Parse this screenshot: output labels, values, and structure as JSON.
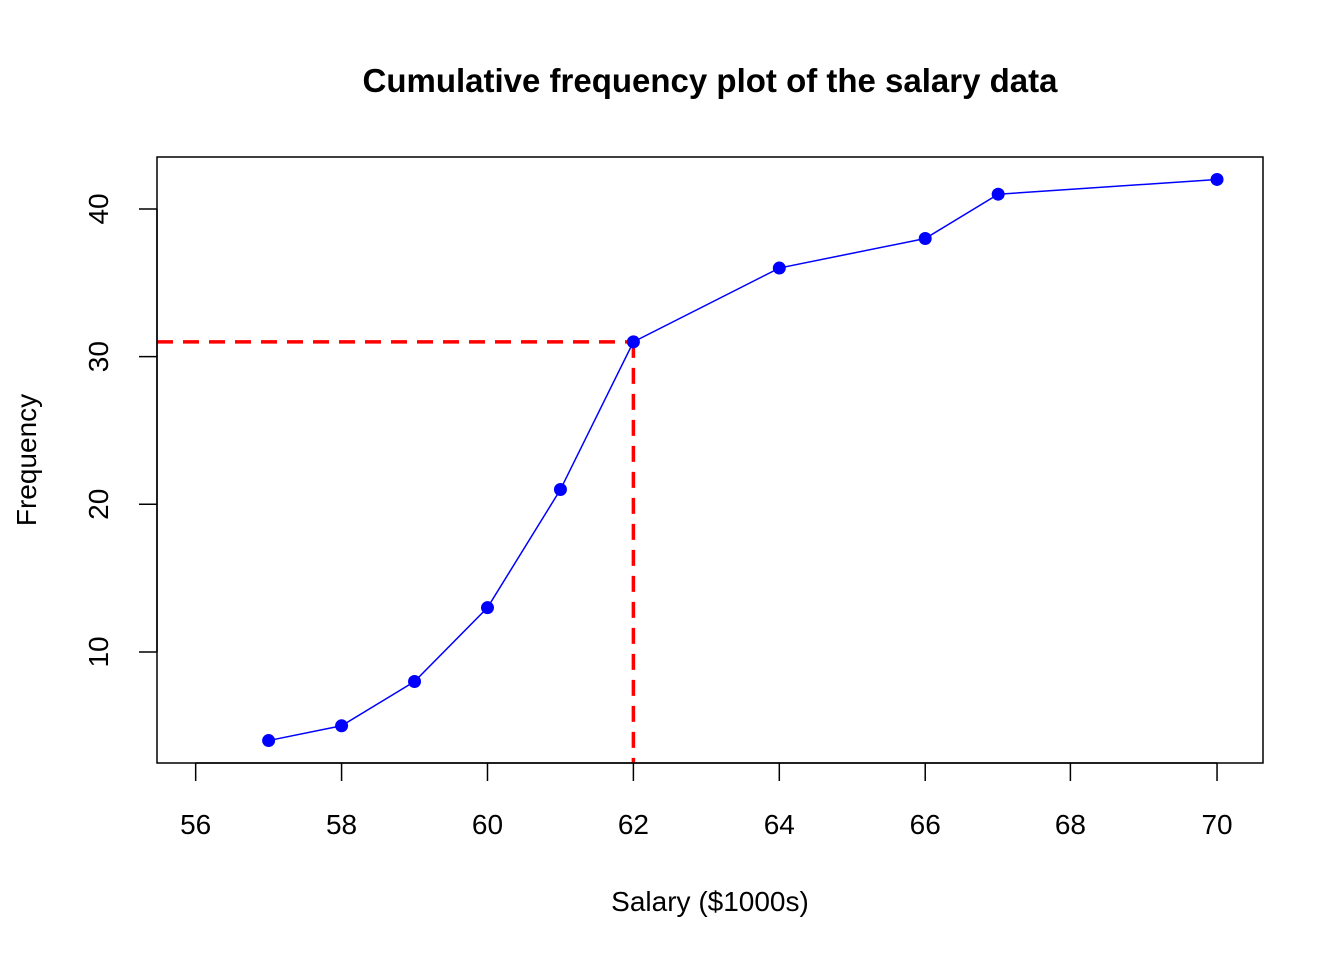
{
  "chart_data": {
    "type": "line",
    "title": "Cumulative frequency plot of the salary data",
    "xlabel": "Salary ($1000s)",
    "ylabel": "Frequency",
    "xlim": [
      55.47,
      70.63
    ],
    "ylim": [
      2.48,
      43.52
    ],
    "x_ticks": [
      56,
      58,
      60,
      62,
      64,
      66,
      67.99,
      70
    ],
    "x_tick_labels": [
      "56",
      "58",
      "60",
      "62",
      "64",
      "66",
      "68",
      "70"
    ],
    "y_ticks": [
      10,
      20,
      30,
      40
    ],
    "y_tick_labels": [
      "10",
      "20",
      "30",
      "40"
    ],
    "grid": false,
    "legend": "none",
    "series": [
      {
        "x": [
          57,
          58,
          59,
          60,
          61,
          62,
          64,
          66,
          67,
          70
        ],
        "y": [
          4,
          5,
          8,
          13,
          21,
          31,
          36,
          38,
          41,
          42
        ],
        "color": "#0000ff"
      }
    ],
    "reference": {
      "x": 62,
      "y": 31,
      "color": "#ff0000"
    }
  }
}
